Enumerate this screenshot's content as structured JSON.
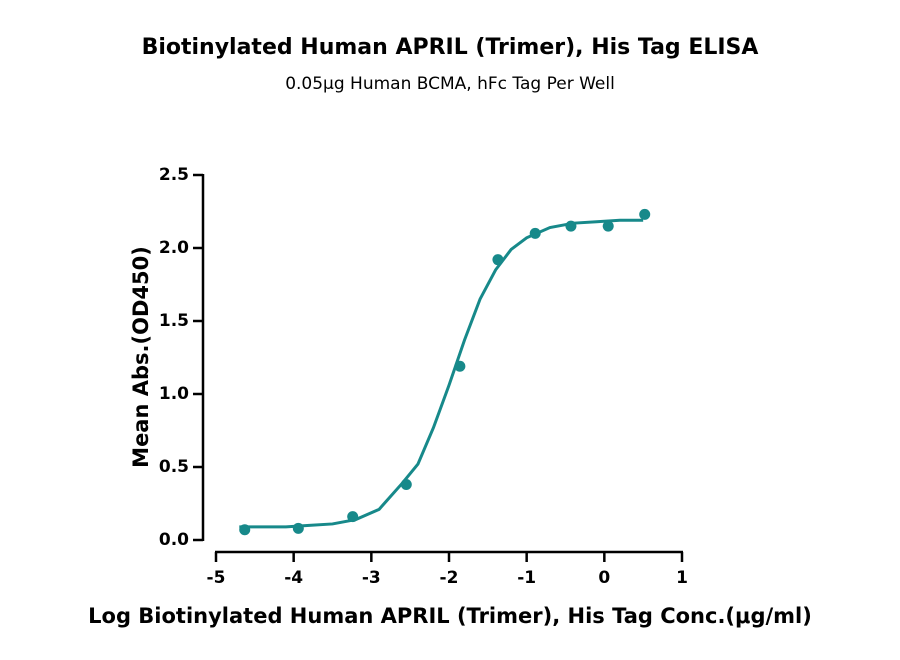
{
  "chart_data": {
    "type": "scatter",
    "title": "Biotinylated Human APRIL (Trimer), His Tag ELISA",
    "subtitle": "0.05μg Human BCMA, hFc Tag Per Well",
    "x_label": "Log Biotinylated Human APRIL (Trimer), His Tag Conc.(μg/ml)",
    "y_label": "Mean Abs.(OD450)",
    "color": "#17898a",
    "x": [
      -4.63,
      -3.94,
      -3.24,
      -2.55,
      -1.86,
      -1.37,
      -0.89,
      -0.43,
      0.05,
      0.52
    ],
    "values": [
      0.07,
      0.08,
      0.16,
      0.38,
      1.19,
      1.92,
      2.1,
      2.15,
      2.15,
      2.23
    ],
    "fit": {
      "x": [
        -4.7,
        -4.4,
        -4.1,
        -3.8,
        -3.5,
        -3.2,
        -2.9,
        -2.6,
        -2.4,
        -2.2,
        -2.0,
        -1.8,
        -1.6,
        -1.4,
        -1.2,
        -1.0,
        -0.7,
        -0.4,
        -0.1,
        0.2,
        0.5
      ],
      "values": [
        0.09,
        0.09,
        0.09,
        0.1,
        0.11,
        0.14,
        0.21,
        0.39,
        0.52,
        0.77,
        1.06,
        1.37,
        1.65,
        1.85,
        1.99,
        2.07,
        2.14,
        2.17,
        2.18,
        2.19,
        2.19
      ]
    },
    "xlim": [
      -5,
      1
    ],
    "ylim": [
      0,
      2.5
    ],
    "xticks": [
      -5,
      -4,
      -3,
      -2,
      -1,
      0,
      1
    ],
    "yticks": [
      {
        "value": 0,
        "label": "0.0"
      },
      {
        "value": 0.5,
        "label": "0.5"
      },
      {
        "value": 1,
        "label": "1.0"
      },
      {
        "value": 1.5,
        "label": "1.5"
      },
      {
        "value": 2,
        "label": "2.0"
      },
      {
        "value": 2.5,
        "label": "2.5"
      }
    ]
  }
}
